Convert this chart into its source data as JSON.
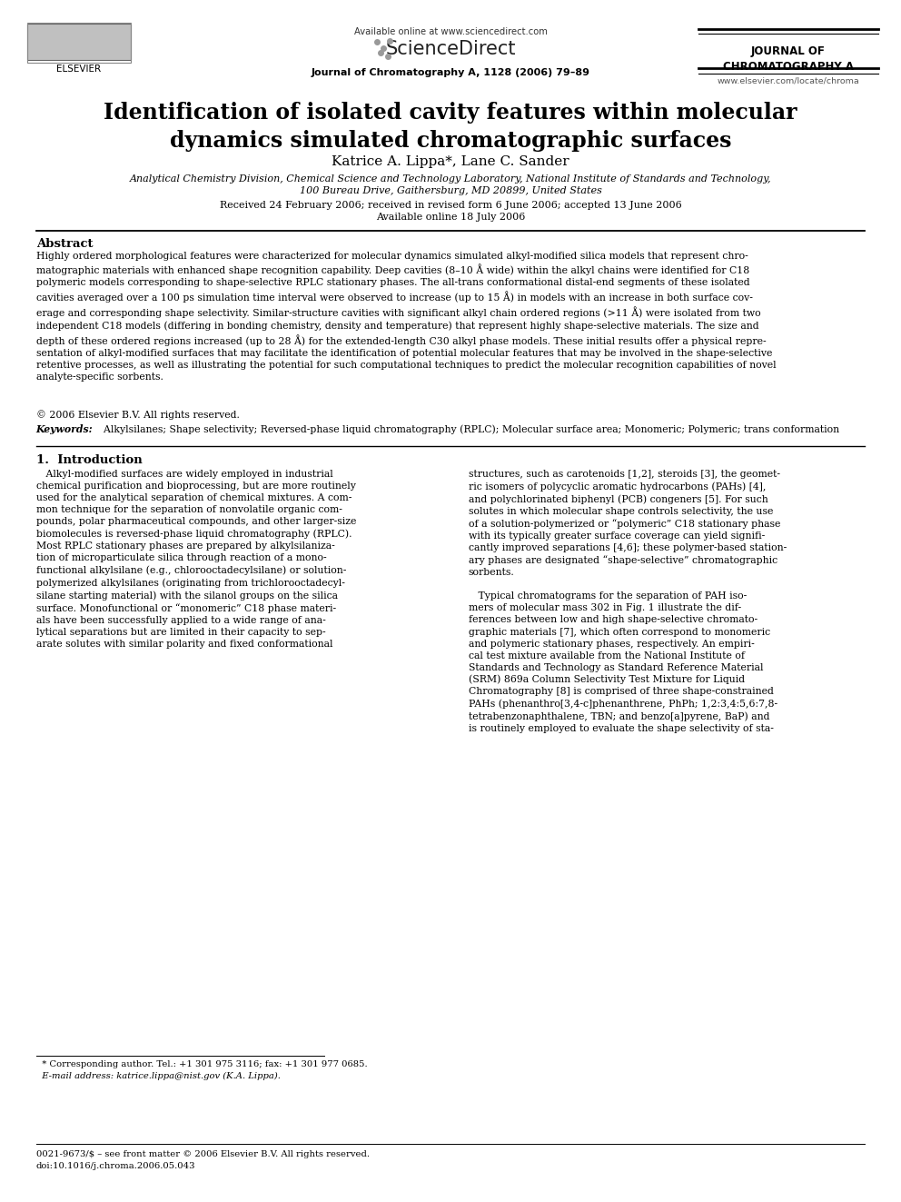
{
  "page_width": 9.92,
  "page_height": 13.23,
  "bg_color": "#ffffff",
  "header": {
    "available_online": "Available online at www.sciencedirect.com",
    "sciencedirect": "ScienceDirect",
    "journal_name_top": "JOURNAL OF\nCHROMATOGRAPHY A",
    "journal_citation": "Journal of Chromatography A, 1128 (2006) 79–89",
    "journal_url": "www.elsevier.com/locate/chroma"
  },
  "title": "Identification of isolated cavity features within molecular\ndynamics simulated chromatographic surfaces",
  "authors": "Katrice A. Lippa*, Lane C. Sander",
  "affiliation1": "Analytical Chemistry Division, Chemical Science and Technology Laboratory, National Institute of Standards and Technology,",
  "affiliation2": "100 Bureau Drive, Gaithersburg, MD 20899, United States",
  "received": "Received 24 February 2006; received in revised form 6 June 2006; accepted 13 June 2006",
  "available_online_date": "Available online 18 July 2006",
  "abstract_heading": "Abstract",
  "abstract_text": "Highly ordered morphological features were characterized for molecular dynamics simulated alkyl-modified silica models that represent chro-\nmatographic materials with enhanced shape recognition capability. Deep cavities (8–10 Å wide) within the alkyl chains were identified for C18\npolymeric models corresponding to shape-selective RPLC stationary phases. The all-trans conformational distal-end segments of these isolated\ncavities averaged over a 100 ps simulation time interval were observed to increase (up to 15 Å) in models with an increase in both surface cov-\nerage and corresponding shape selectivity. Similar-structure cavities with significant alkyl chain ordered regions (>11 Å) were isolated from two\nindependent C18 models (differing in bonding chemistry, density and temperature) that represent highly shape-selective materials. The size and\ndepth of these ordered regions increased (up to 28 Å) for the extended-length C30 alkyl phase models. These initial results offer a physical repre-\nsentation of alkyl-modified surfaces that may facilitate the identification of potential molecular features that may be involved in the shape-selective\nretentive processes, as well as illustrating the potential for such computational techniques to predict the molecular recognition capabilities of novel\nanalyte-specific sorbents.",
  "copyright": "© 2006 Elsevier B.V. All rights reserved.",
  "keywords_label": "Keywords:",
  "keywords_text": "  Alkylsilanes; Shape selectivity; Reversed-phase liquid chromatography (RPLC); Molecular surface area; Monomeric; Polymeric; trans conformation",
  "section1_heading": "1.  Introduction",
  "intro_col1_lines": [
    "   Alkyl-modified surfaces are widely employed in industrial",
    "chemical purification and bioprocessing, but are more routinely",
    "used for the analytical separation of chemical mixtures. A com-",
    "mon technique for the separation of nonvolatile organic com-",
    "pounds, polar pharmaceutical compounds, and other larger-size",
    "biomolecules is reversed-phase liquid chromatography (RPLC).",
    "Most RPLC stationary phases are prepared by alkylsilaniza-",
    "tion of microparticulate silica through reaction of a mono-",
    "functional alkylsilane (e.g., chlorooctadecylsilane) or solution-",
    "polymerized alkylsilanes (originating from trichlorooctadecyl-",
    "silane starting material) with the silanol groups on the silica",
    "surface. Monofunctional or “monomeric” C18 phase materi-",
    "als have been successfully applied to a wide range of ana-",
    "lytical separations but are limited in their capacity to sep-",
    "arate solutes with similar polarity and fixed conformational"
  ],
  "intro_col2_lines": [
    "structures, such as carotenoids [1,2], steroids [3], the geomet-",
    "ric isomers of polycyclic aromatic hydrocarbons (PAHs) [4],",
    "and polychlorinated biphenyl (PCB) congeners [5]. For such",
    "solutes in which molecular shape controls selectivity, the use",
    "of a solution-polymerized or “polymeric” C18 stationary phase",
    "with its typically greater surface coverage can yield signifi-",
    "cantly improved separations [4,6]; these polymer-based station-",
    "ary phases are designated “shape-selective” chromatographic",
    "sorbents.",
    "",
    "   Typical chromatograms for the separation of PAH iso-",
    "mers of molecular mass 302 in Fig. 1 illustrate the dif-",
    "ferences between low and high shape-selective chromato-",
    "graphic materials [7], which often correspond to monomeric",
    "and polymeric stationary phases, respectively. An empiri-",
    "cal test mixture available from the National Institute of",
    "Standards and Technology as Standard Reference Material",
    "(SRM) 869a Column Selectivity Test Mixture for Liquid",
    "Chromatography [8] is comprised of three shape-constrained",
    "PAHs (phenanthro[3,4-c]phenanthrene, PhPh; 1,2:3,4:5,6:7,8-",
    "tetrabenzonaphthalene, TBN; and benzo[a]pyrene, BaP) and",
    "is routinely employed to evaluate the shape selectivity of sta-"
  ],
  "footnote_star": "  * Corresponding author. Tel.: +1 301 975 3116; fax: +1 301 977 0685.",
  "footnote_email": "  E-mail address: katrice.lippa@nist.gov (K.A. Lippa).",
  "footer_left": "0021-9673/$ – see front matter © 2006 Elsevier B.V. All rights reserved.",
  "footer_doi": "doi:10.1016/j.chroma.2006.05.043"
}
